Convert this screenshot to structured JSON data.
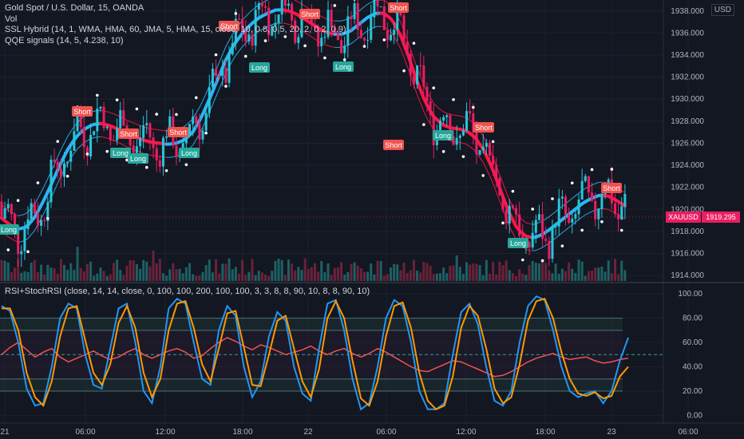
{
  "header": {
    "title": "Gold Spot / U.S. Dollar, 15, OANDA",
    "vol_label": "Vol",
    "indicator1": "SSL Hybrid (14, 1, WMA, HMA, 60, JMA, 5, HMA, 15, close, 10, 0.8, 0.5, 20, 2, 0.2, 0.9)",
    "indicator2": "QQE signals (14, 5, 4.238, 10)",
    "indicator3": "RSI+StochRSI (close, 14, 14, close, 0, 100, 100, 200, 100, 100, 3, 3, 8, 8, 90, 10, 8, 8, 90, 10)"
  },
  "price_axis": {
    "currency": "USD",
    "ticks": [
      "1938.000",
      "1936.000",
      "1934.000",
      "1932.000",
      "1930.000",
      "1928.000",
      "1926.000",
      "1924.000",
      "1922.000",
      "1920.000",
      "1918.000",
      "1916.000",
      "1914.000"
    ],
    "current_symbol": "XAUUSD",
    "current_price": "1919.295"
  },
  "osc_axis": {
    "ticks": [
      "100.00",
      "80.00",
      "60.00",
      "40.00",
      "20.00",
      "0.00"
    ]
  },
  "time_axis": {
    "labels": [
      "21",
      "06:00",
      "12:00",
      "18:00",
      "22",
      "06:00",
      "12:00",
      "18:00",
      "23",
      "06:00"
    ]
  },
  "signals": [
    {
      "text": "Short",
      "type": "short"
    },
    {
      "text": "Short",
      "type": "short"
    },
    {
      "text": "Short",
      "type": "short"
    },
    {
      "text": "Short",
      "type": "short"
    },
    {
      "text": "Short",
      "type": "short"
    },
    {
      "text": "Short",
      "type": "short"
    },
    {
      "text": "Short",
      "type": "short"
    },
    {
      "text": "Short",
      "type": "short"
    },
    {
      "text": "Short",
      "type": "short"
    },
    {
      "text": "Long",
      "type": "long"
    },
    {
      "text": "Long",
      "type": "long"
    },
    {
      "text": "Long",
      "type": "long"
    },
    {
      "text": "Long",
      "type": "long"
    },
    {
      "text": "Long",
      "type": "long"
    },
    {
      "text": "Long",
      "type": "long"
    },
    {
      "text": "Long",
      "type": "long"
    },
    {
      "text": "Long",
      "type": "long"
    }
  ],
  "colors": {
    "background": "#131722",
    "bull": "#26c6da",
    "bear": "#e91e63",
    "ssl_up": "#29b6f6",
    "ssl_down": "#ff1744",
    "rsi": "#ef5350",
    "stoch_k": "#2196f3",
    "stoch_d": "#ff9800",
    "long_label": "#26a69a",
    "short_label": "#ef5350"
  },
  "chart_data": [
    {
      "type": "candlestick",
      "title": "Gold Spot / U.S. Dollar, 15, OANDA",
      "ylim": [
        1913.5,
        1939
      ],
      "ssl_baseline": [
        1919.2,
        1918.6,
        1918.2,
        1918.4,
        1919.3,
        1920.7,
        1922.3,
        1924.0,
        1925.5,
        1926.6,
        1927.3,
        1927.7,
        1927.8,
        1927.6,
        1927.3,
        1926.9,
        1926.6,
        1926.3,
        1926.1,
        1926.0,
        1925.9,
        1926.0,
        1926.3,
        1927.0,
        1928.3,
        1930.0,
        1931.8,
        1933.6,
        1935.0,
        1936.0,
        1936.8,
        1937.4,
        1937.8,
        1938.1,
        1938.1,
        1937.9,
        1937.5,
        1937.0,
        1936.5,
        1936.1,
        1935.9,
        1935.9,
        1936.2,
        1936.8,
        1937.4,
        1937.8,
        1937.8,
        1937.2,
        1935.8,
        1933.8,
        1931.6,
        1929.7,
        1928.4,
        1927.7,
        1927.4,
        1927.3,
        1927.1,
        1926.5,
        1925.4,
        1923.8,
        1921.8,
        1919.8,
        1918.3,
        1917.6,
        1917.4,
        1917.7,
        1918.2,
        1918.8,
        1919.4,
        1920.0,
        1920.6,
        1921.0,
        1921.3,
        1921.2,
        1920.8,
        1920.3
      ],
      "volume_note": "volume bars shown at bottom of price pane"
    },
    {
      "type": "line",
      "title": "RSI+StochRSI",
      "ylim": [
        -5,
        108
      ],
      "levels": [
        80,
        70,
        50,
        30,
        20
      ],
      "series": [
        {
          "values": [
            50,
            56,
            60,
            54,
            48,
            52,
            55,
            48,
            44,
            47,
            50,
            53,
            49,
            46,
            48,
            52,
            55,
            50,
            47,
            50,
            53,
            55,
            52,
            47,
            49,
            55,
            60,
            64,
            61,
            57,
            54,
            58,
            56,
            53,
            50,
            52,
            54,
            57,
            53,
            50,
            53,
            55,
            51,
            48,
            51,
            55,
            52,
            48,
            44,
            40,
            37,
            36,
            39,
            42,
            45,
            44,
            41,
            38,
            35,
            32,
            33,
            36,
            40,
            44,
            47,
            49,
            51,
            48,
            46,
            47,
            48,
            45,
            43,
            44,
            46,
            47
          ]
        },
        {
          "values": [
            90,
            86,
            60,
            22,
            8,
            10,
            40,
            80,
            92,
            88,
            50,
            25,
            22,
            55,
            88,
            92,
            60,
            20,
            10,
            40,
            88,
            96,
            92,
            60,
            30,
            25,
            70,
            90,
            82,
            40,
            15,
            28,
            65,
            85,
            78,
            40,
            18,
            12,
            55,
            92,
            95,
            70,
            30,
            5,
            10,
            40,
            80,
            95,
            90,
            60,
            20,
            5,
            5,
            10,
            50,
            85,
            92,
            75,
            40,
            12,
            8,
            20,
            60,
            90,
            98,
            95,
            70,
            40,
            20,
            15,
            18,
            20,
            10,
            20,
            45,
            64
          ]
        },
        {
          "values": [
            88,
            88,
            70,
            35,
            15,
            8,
            28,
            65,
            88,
            90,
            62,
            35,
            25,
            42,
            76,
            90,
            72,
            35,
            15,
            30,
            70,
            92,
            94,
            72,
            42,
            28,
            55,
            84,
            86,
            56,
            25,
            24,
            50,
            78,
            82,
            55,
            28,
            15,
            38,
            80,
            94,
            80,
            45,
            14,
            8,
            28,
            65,
            90,
            93,
            72,
            35,
            12,
            5,
            8,
            32,
            72,
            90,
            82,
            55,
            22,
            10,
            15,
            42,
            78,
            94,
            96,
            80,
            52,
            30,
            18,
            16,
            19,
            14,
            16,
            32,
            40
          ]
        }
      ]
    }
  ]
}
